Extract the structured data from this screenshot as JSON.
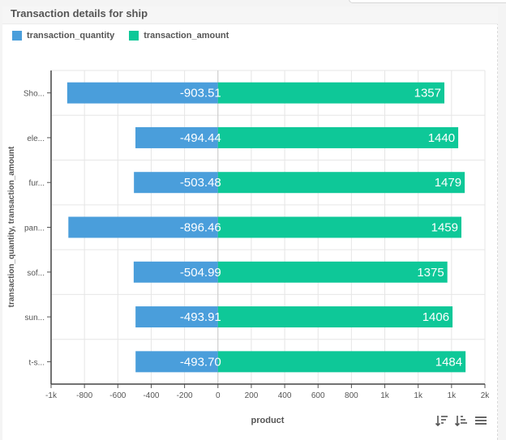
{
  "panel": {
    "title": "Transaction details for ship"
  },
  "legend": {
    "items": [
      {
        "label": "transaction_quantity",
        "color": "#4a9edb"
      },
      {
        "label": "transaction_amount",
        "color": "#0ec898"
      }
    ]
  },
  "toolbar": {
    "icons": [
      "sort-descending-icon",
      "sort-ascending-icon",
      "menu-icon"
    ]
  },
  "chart_data": {
    "type": "bar",
    "orientation": "horizontal",
    "stacked": true,
    "categories": [
      "Sho...",
      "ele...",
      "fur...",
      "pan...",
      "sof...",
      "sun...",
      "t-s..."
    ],
    "series": [
      {
        "name": "transaction_quantity",
        "color": "#4a9edb",
        "values": [
          -903.51,
          -494.44,
          -503.48,
          -896.46,
          -504.99,
          -493.91,
          -493.7
        ],
        "labels": [
          "-903.51",
          "-494.44",
          "-503.48",
          "-896.46",
          "-504.99",
          "-493.91",
          "-493.70"
        ]
      },
      {
        "name": "transaction_amount",
        "color": "#0ec898",
        "values": [
          1357,
          1440,
          1479,
          1459,
          1375,
          1406,
          1484
        ],
        "labels": [
          "1357",
          "1440",
          "1479",
          "1459",
          "1375",
          "1406",
          "1484"
        ]
      }
    ],
    "xlim": [
      -1000,
      1600
    ],
    "xticks": [
      -1000,
      -800,
      -600,
      -400,
      -200,
      0,
      200,
      400,
      600,
      800,
      1000,
      1200,
      1400,
      1600
    ],
    "xtick_labels": [
      "-1k",
      "-800",
      "-600",
      "-400",
      "-200",
      "0",
      "200",
      "400",
      "600",
      "800",
      "1k",
      "1k",
      "1k",
      "2k"
    ],
    "xlabel": "product",
    "ylabel": "transaction_quantity, transaction_amount",
    "grid": true,
    "legend_position": "top-left"
  }
}
